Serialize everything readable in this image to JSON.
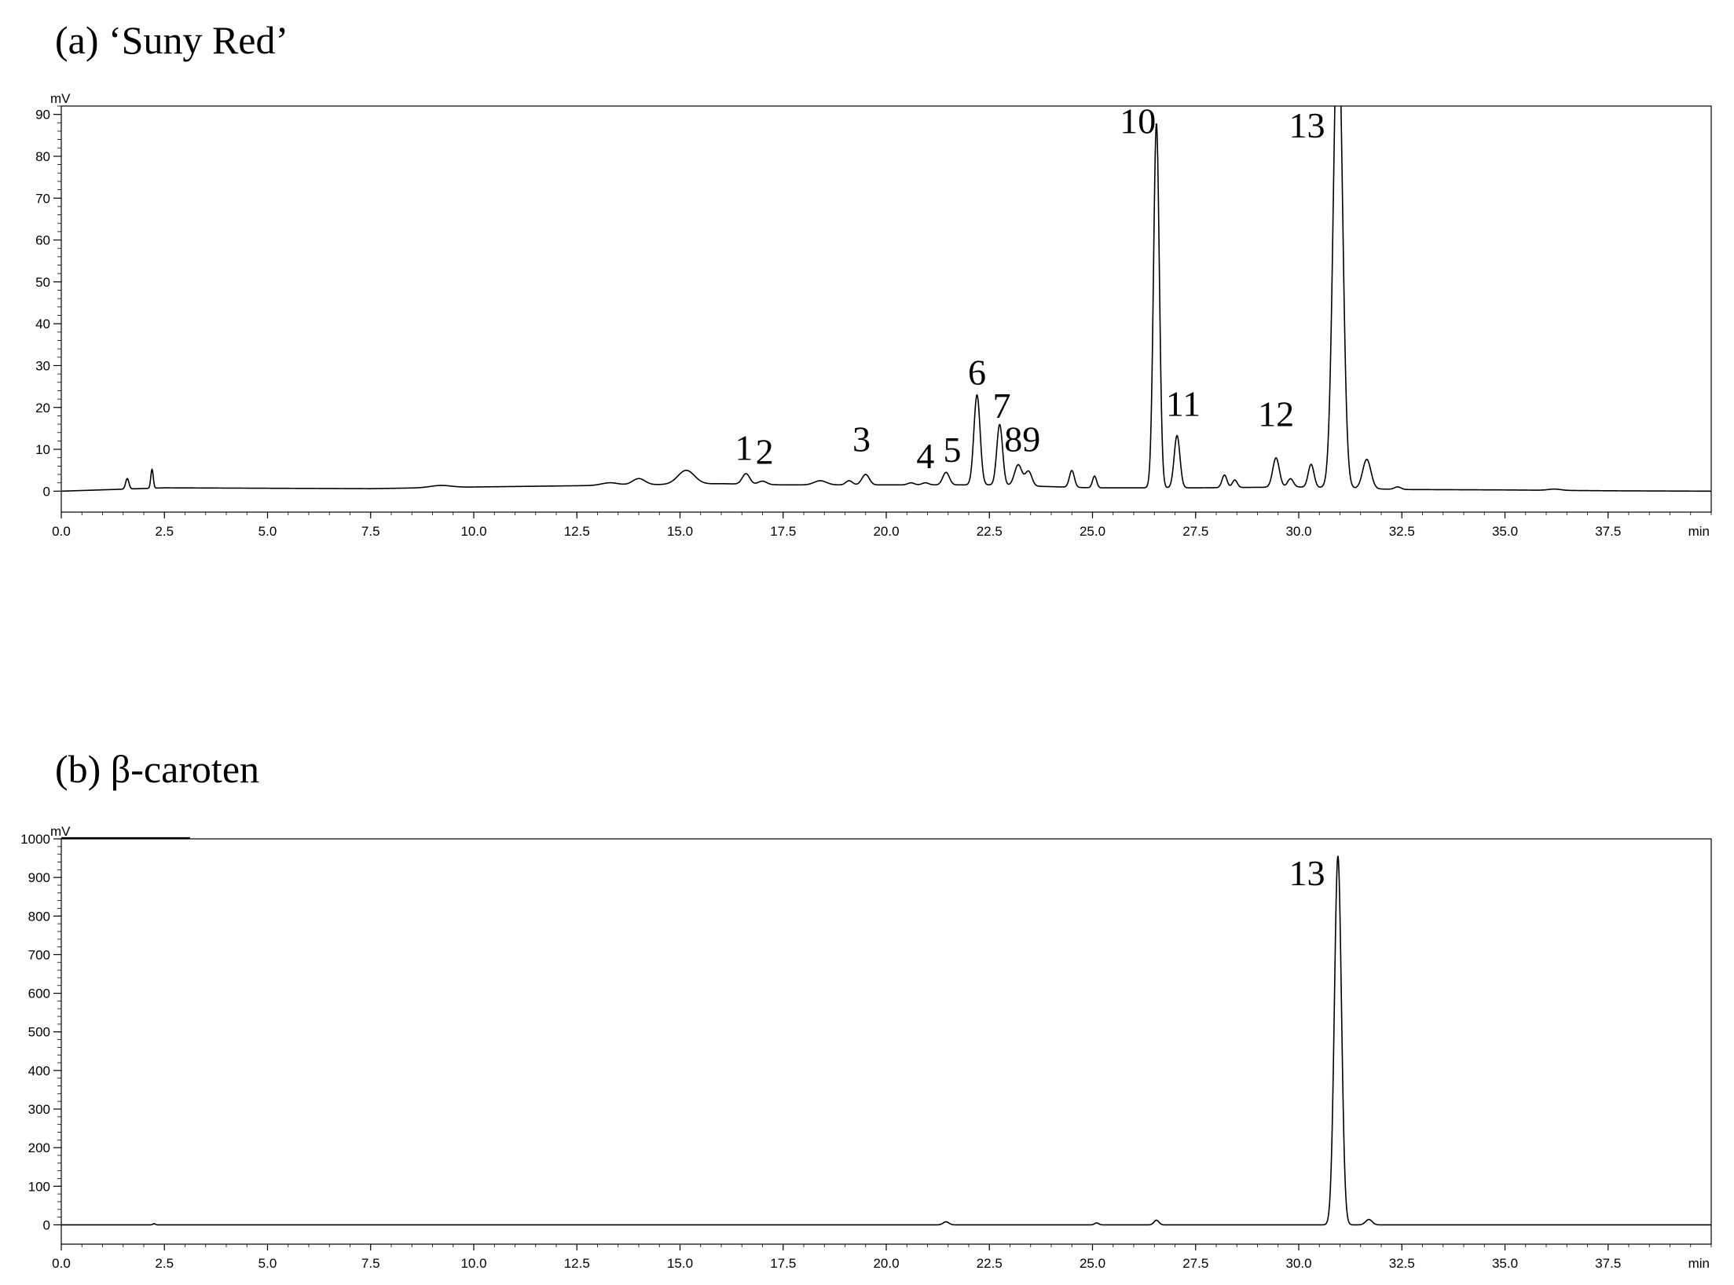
{
  "chart_data": [
    {
      "type": "line",
      "title": "(a) ‘Suny Red’",
      "xlabel": "min",
      "ylabel": "mV",
      "xlim": [
        0,
        40
      ],
      "ylim": [
        -5,
        92
      ],
      "x_ticks": [
        0.0,
        2.5,
        5.0,
        7.5,
        10.0,
        12.5,
        15.0,
        17.5,
        20.0,
        22.5,
        25.0,
        27.5,
        30.0,
        32.5,
        35.0,
        37.5
      ],
      "x_tick_labels": [
        "0.0",
        "2.5",
        "5.0",
        "7.5",
        "10.0",
        "12.5",
        "15.0",
        "17.5",
        "20.0",
        "22.5",
        "25.0",
        "27.5",
        "30.0",
        "32.5",
        "35.0",
        "37.5"
      ],
      "y_ticks": [
        0,
        10,
        20,
        30,
        40,
        50,
        60,
        70,
        80,
        90
      ],
      "y_tick_labels": [
        "0",
        "10",
        "20",
        "30",
        "40",
        "50",
        "60",
        "70",
        "80",
        "90"
      ],
      "grid": false,
      "baseline": [
        [
          0,
          0
        ],
        [
          2.5,
          0.8
        ],
        [
          5,
          0.7
        ],
        [
          7.5,
          0.6
        ],
        [
          10,
          1.0
        ],
        [
          12.5,
          1.3
        ],
        [
          16,
          1.8
        ],
        [
          17.5,
          1.5
        ],
        [
          20,
          1.5
        ],
        [
          22.5,
          1.5
        ],
        [
          25,
          0.8
        ],
        [
          27.5,
          0.8
        ],
        [
          30,
          1.0
        ],
        [
          32.5,
          0.4
        ],
        [
          35,
          0.3
        ],
        [
          37.5,
          0.1
        ],
        [
          40,
          0.0
        ]
      ],
      "peaks": [
        {
          "rt": 1.6,
          "height": 2.5,
          "width": 0.04
        },
        {
          "rt": 2.2,
          "height": 4.5,
          "width": 0.03
        },
        {
          "rt": 9.2,
          "height": 0.5,
          "width": 0.25
        },
        {
          "rt": 13.3,
          "height": 0.6,
          "width": 0.2
        },
        {
          "rt": 14.0,
          "height": 1.5,
          "width": 0.15
        },
        {
          "rt": 15.15,
          "height": 3.3,
          "width": 0.2
        },
        {
          "rt": 16.6,
          "height": 2.5,
          "width": 0.09,
          "label": "1"
        },
        {
          "rt": 17.0,
          "height": 0.8,
          "width": 0.1,
          "label": "2"
        },
        {
          "rt": 18.4,
          "height": 1.0,
          "width": 0.15
        },
        {
          "rt": 19.1,
          "height": 1.0,
          "width": 0.08
        },
        {
          "rt": 19.5,
          "height": 2.5,
          "width": 0.09,
          "label": "3"
        },
        {
          "rt": 20.6,
          "height": 0.5,
          "width": 0.08
        },
        {
          "rt": 20.95,
          "height": 0.5,
          "width": 0.08,
          "label": "4"
        },
        {
          "rt": 21.45,
          "height": 3.0,
          "width": 0.08,
          "label": "5"
        },
        {
          "rt": 22.2,
          "height": 21.5,
          "width": 0.075,
          "label": "6"
        },
        {
          "rt": 22.75,
          "height": 14.5,
          "width": 0.07,
          "label": "7"
        },
        {
          "rt": 23.2,
          "height": 5.0,
          "width": 0.09,
          "label": "8"
        },
        {
          "rt": 23.45,
          "height": 3.5,
          "width": 0.08,
          "label": "9"
        },
        {
          "rt": 24.5,
          "height": 4.0,
          "width": 0.06
        },
        {
          "rt": 25.05,
          "height": 2.8,
          "width": 0.05
        },
        {
          "rt": 26.55,
          "height": 87,
          "width": 0.07,
          "label": "10"
        },
        {
          "rt": 27.05,
          "height": 12.5,
          "width": 0.07,
          "label": "11"
        },
        {
          "rt": 28.2,
          "height": 3.0,
          "width": 0.06
        },
        {
          "rt": 28.45,
          "height": 1.8,
          "width": 0.06
        },
        {
          "rt": 29.45,
          "height": 7.0,
          "width": 0.08,
          "label": "12"
        },
        {
          "rt": 29.8,
          "height": 2.0,
          "width": 0.07
        },
        {
          "rt": 30.3,
          "height": 5.5,
          "width": 0.07
        },
        {
          "rt": 30.95,
          "height": 115,
          "width": 0.11,
          "label": "13"
        },
        {
          "rt": 31.65,
          "height": 7.0,
          "width": 0.1
        },
        {
          "rt": 32.4,
          "height": 0.6,
          "width": 0.08
        },
        {
          "rt": 36.2,
          "height": 0.3,
          "width": 0.15
        }
      ],
      "annotations": [
        {
          "text": "1",
          "x": 16.55,
          "y": 7.5
        },
        {
          "text": "2",
          "x": 17.05,
          "y": 6.5
        },
        {
          "text": "3",
          "x": 19.4,
          "y": 9.5
        },
        {
          "text": "4",
          "x": 20.95,
          "y": 5.5
        },
        {
          "text": "5",
          "x": 21.6,
          "y": 7.0
        },
        {
          "text": "6",
          "x": 22.2,
          "y": 25.5
        },
        {
          "text": "7",
          "x": 22.8,
          "y": 17.5
        },
        {
          "text": "89",
          "x": 23.3,
          "y": 9.5
        },
        {
          "text": "10",
          "x": 26.1,
          "y": 85.5
        },
        {
          "text": "11",
          "x": 27.2,
          "y": 18.0
        },
        {
          "text": "12",
          "x": 29.45,
          "y": 15.5
        },
        {
          "text": "13",
          "x": 30.2,
          "y": 84.5
        }
      ]
    },
    {
      "type": "line",
      "title": "(b) β-caroten",
      "xlabel": "min",
      "ylabel": "mV",
      "xlim": [
        0,
        40
      ],
      "ylim": [
        -50,
        1000
      ],
      "x_ticks": [
        0.0,
        2.5,
        5.0,
        7.5,
        10.0,
        12.5,
        15.0,
        17.5,
        20.0,
        22.5,
        25.0,
        27.5,
        30.0,
        32.5,
        35.0,
        37.5
      ],
      "x_tick_labels": [
        "0.0",
        "2.5",
        "5.0",
        "7.5",
        "10.0",
        "12.5",
        "15.0",
        "17.5",
        "20.0",
        "22.5",
        "25.0",
        "27.5",
        "30.0",
        "32.5",
        "35.0",
        "37.5"
      ],
      "y_ticks": [
        0,
        100,
        200,
        300,
        400,
        500,
        600,
        700,
        800,
        900,
        1000
      ],
      "y_tick_labels": [
        "0",
        "100",
        "200",
        "300",
        "400",
        "500",
        "600",
        "700",
        "800",
        "900",
        "1000"
      ],
      "grid": false,
      "baseline": [
        [
          0,
          0
        ],
        [
          40,
          0
        ]
      ],
      "peaks": [
        {
          "rt": 2.25,
          "height": 3,
          "width": 0.03
        },
        {
          "rt": 21.45,
          "height": 8,
          "width": 0.07
        },
        {
          "rt": 25.1,
          "height": 5,
          "width": 0.05
        },
        {
          "rt": 26.55,
          "height": 12,
          "width": 0.06
        },
        {
          "rt": 30.95,
          "height": 955,
          "width": 0.085,
          "label": "13"
        },
        {
          "rt": 31.7,
          "height": 14,
          "width": 0.08
        }
      ],
      "annotations": [
        {
          "text": "13",
          "x": 30.2,
          "y": 880
        }
      ]
    }
  ]
}
